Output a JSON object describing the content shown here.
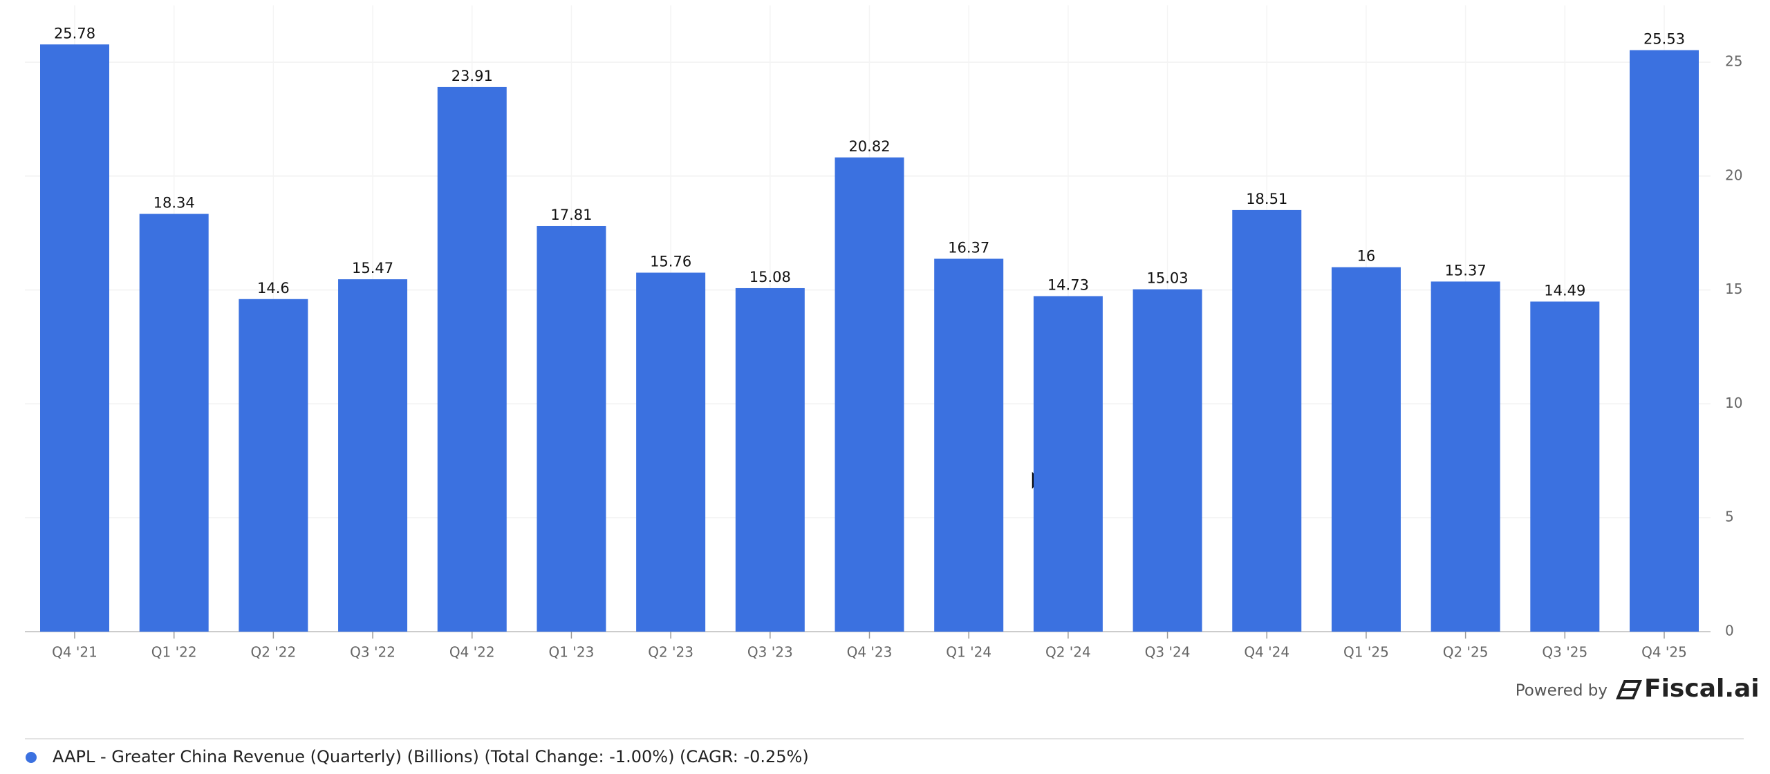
{
  "chart_data": {
    "type": "bar",
    "categories": [
      "Q4 '21",
      "Q1 '22",
      "Q2 '22",
      "Q3 '22",
      "Q4 '22",
      "Q1 '23",
      "Q2 '23",
      "Q3 '23",
      "Q4 '23",
      "Q1 '24",
      "Q2 '24",
      "Q3 '24",
      "Q4 '24",
      "Q1 '25",
      "Q2 '25",
      "Q3 '25",
      "Q4 '25"
    ],
    "series": [
      {
        "name": "AAPL - Greater China Revenue (Quarterly) (Billions) (Total Change: -1.00%) (CAGR: -0.25%)",
        "color": "#3b71e0",
        "values": [
          25.78,
          18.34,
          14.6,
          15.47,
          23.91,
          17.81,
          15.76,
          15.08,
          20.82,
          16.37,
          14.73,
          15.03,
          18.51,
          16,
          15.37,
          14.49,
          25.53
        ]
      }
    ],
    "ylim": [
      0,
      27.5
    ],
    "yticks": [
      0,
      5,
      10,
      15,
      20,
      25
    ],
    "grid": true
  },
  "footer": {
    "powered_by": "Powered by",
    "brand": "Fiscal.ai"
  }
}
